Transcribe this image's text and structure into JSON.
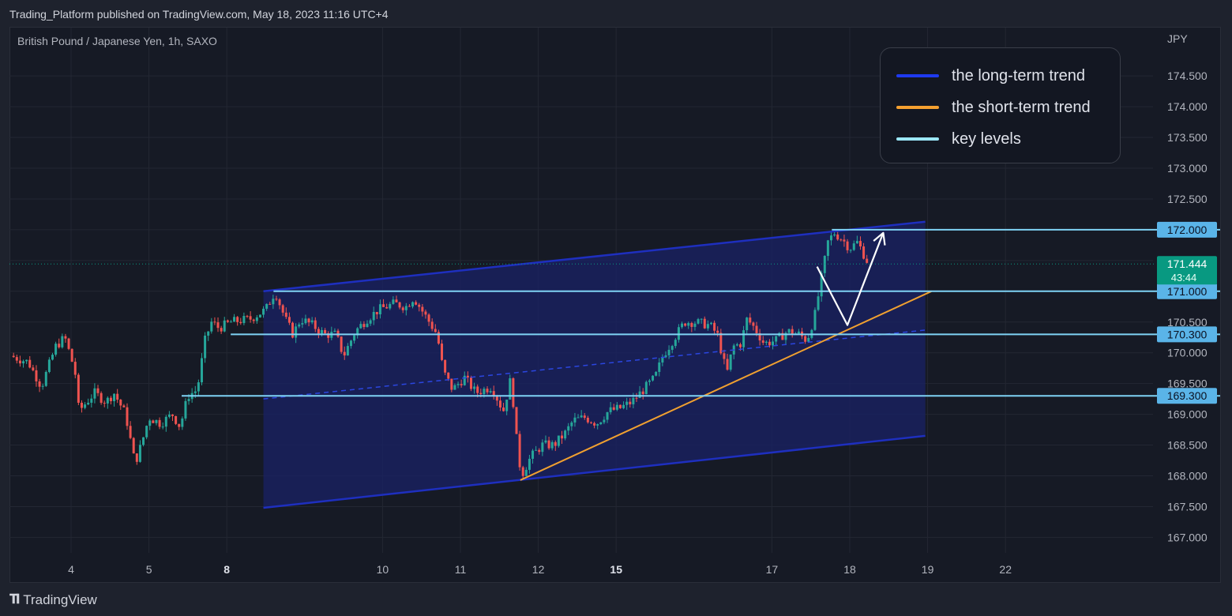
{
  "attribution": "Trading_Platform published on TradingView.com, May 18, 2023 11:16 UTC+4",
  "symbol_title": "British Pound / Japanese Yen, 1h, SAXO",
  "currency_label": "JPY",
  "footer_brand": "TradingView",
  "colors": {
    "background": "#161a25",
    "grid": "#232733",
    "up_candle": "#26a69a",
    "down_candle": "#ef5350",
    "channel_line": "#1e2fbf",
    "channel_fill": "#1a2266",
    "short_trend": "#f0a030",
    "key_level": "#7fd3f5",
    "price_tag": "#089981",
    "arrow": "#ffffff"
  },
  "legend": {
    "items": [
      {
        "label": "the long-term trend",
        "color": "#1e3af0"
      },
      {
        "label": "the short-term trend",
        "color": "#f5a030"
      },
      {
        "label": "key levels",
        "color": "#9be7fb"
      }
    ]
  },
  "chart_data": {
    "type": "candlestick",
    "title": "British Pound / Japanese Yen, 1h, SAXO",
    "y_axis_unit": "JPY",
    "ylim": [
      166.7,
      175.0
    ],
    "y_ticks": [
      "174.500",
      "174.000",
      "173.500",
      "173.000",
      "172.500",
      "172.000",
      "171.500",
      "171.000",
      "170.500",
      "170.000",
      "169.500",
      "169.000",
      "168.500",
      "168.000",
      "167.500",
      "167.000"
    ],
    "x_ticks": [
      {
        "label": "4",
        "day": 0,
        "bold": false
      },
      {
        "label": "5",
        "day": 1,
        "bold": false
      },
      {
        "label": "8",
        "day": 2,
        "bold": true
      },
      {
        "label": "10",
        "day": 4,
        "bold": false
      },
      {
        "label": "11",
        "day": 5,
        "bold": false
      },
      {
        "label": "12",
        "day": 6,
        "bold": false
      },
      {
        "label": "15",
        "day": 7,
        "bold": true
      },
      {
        "label": "17",
        "day": 9,
        "bold": false
      },
      {
        "label": "18",
        "day": 10,
        "bold": false
      },
      {
        "label": "19",
        "day": 11,
        "bold": false
      },
      {
        "label": "22",
        "day": 12,
        "bold": false
      }
    ],
    "price_anchors": [
      [
        -0.78,
        169.95
      ],
      [
        -0.55,
        169.85
      ],
      [
        -0.38,
        169.45
      ],
      [
        -0.2,
        170.1
      ],
      [
        -0.08,
        170.25
      ],
      [
        0.05,
        169.7
      ],
      [
        0.1,
        169.05
      ],
      [
        0.3,
        169.35
      ],
      [
        0.45,
        169.2
      ],
      [
        0.55,
        169.35
      ],
      [
        0.7,
        169.0
      ],
      [
        0.82,
        168.2
      ],
      [
        0.9,
        168.5
      ],
      [
        1.0,
        168.95
      ],
      [
        1.15,
        168.85
      ],
      [
        1.3,
        169.0
      ],
      [
        1.4,
        168.8
      ],
      [
        1.5,
        169.3
      ],
      [
        1.62,
        169.4
      ],
      [
        1.72,
        170.2
      ],
      [
        1.8,
        170.5
      ],
      [
        1.9,
        170.4
      ],
      [
        2.05,
        170.5
      ],
      [
        2.3,
        170.55
      ],
      [
        2.5,
        170.7
      ],
      [
        2.62,
        171.0
      ],
      [
        2.75,
        170.55
      ],
      [
        2.85,
        170.3
      ],
      [
        2.95,
        170.55
      ],
      [
        3.1,
        170.45
      ],
      [
        3.25,
        170.3
      ],
      [
        3.4,
        170.3
      ],
      [
        3.5,
        169.95
      ],
      [
        3.65,
        170.35
      ],
      [
        3.8,
        170.55
      ],
      [
        3.95,
        170.7
      ],
      [
        4.15,
        170.8
      ],
      [
        4.3,
        170.75
      ],
      [
        4.4,
        170.9
      ],
      [
        4.55,
        170.6
      ],
      [
        4.7,
        170.3
      ],
      [
        4.78,
        169.7
      ],
      [
        4.9,
        169.4
      ],
      [
        5.05,
        169.6
      ],
      [
        5.2,
        169.35
      ],
      [
        5.4,
        169.45
      ],
      [
        5.55,
        169.05
      ],
      [
        5.65,
        169.6
      ],
      [
        5.72,
        168.6
      ],
      [
        5.78,
        168.0
      ],
      [
        5.9,
        168.3
      ],
      [
        6.05,
        168.5
      ],
      [
        6.2,
        168.5
      ],
      [
        6.35,
        168.7
      ],
      [
        6.45,
        168.9
      ],
      [
        6.6,
        168.95
      ],
      [
        6.75,
        168.85
      ],
      [
        6.9,
        169.05
      ],
      [
        7.05,
        169.1
      ],
      [
        7.2,
        169.2
      ],
      [
        7.35,
        169.4
      ],
      [
        7.5,
        169.6
      ],
      [
        7.6,
        169.95
      ],
      [
        7.75,
        170.25
      ],
      [
        7.88,
        170.5
      ],
      [
        8.0,
        170.5
      ],
      [
        8.2,
        170.45
      ],
      [
        8.3,
        170.3
      ],
      [
        8.42,
        169.65
      ],
      [
        8.5,
        170.1
      ],
      [
        8.6,
        170.15
      ],
      [
        8.68,
        170.55
      ],
      [
        8.78,
        170.4
      ],
      [
        8.9,
        170.15
      ],
      [
        9.05,
        170.2
      ],
      [
        9.2,
        170.35
      ],
      [
        9.35,
        170.3
      ],
      [
        9.45,
        170.2
      ],
      [
        9.55,
        170.6
      ],
      [
        9.62,
        171.1
      ],
      [
        9.72,
        171.8
      ],
      [
        9.8,
        171.95
      ],
      [
        9.9,
        171.85
      ],
      [
        10.0,
        171.7
      ],
      [
        10.1,
        171.8
      ],
      [
        10.2,
        171.55
      ],
      [
        10.26,
        171.4
      ]
    ],
    "key_levels": [
      {
        "price": 172.0,
        "label": "172.000",
        "x_start_day": 9.77
      },
      {
        "price": 171.0,
        "label": "171.000",
        "x_start_day": 2.6
      },
      {
        "price": 170.3,
        "label": "170.300",
        "x_start_day": 2.05
      },
      {
        "price": 169.3,
        "label": "169.300",
        "x_start_day": 1.42
      }
    ],
    "last_price": {
      "value": "171.444",
      "countdown": "43:44",
      "price": 171.444
    },
    "channel": {
      "upper": [
        [
          2.47,
          171.0
        ],
        [
          10.97,
          172.13
        ]
      ],
      "lower": [
        [
          2.47,
          167.48
        ],
        [
          10.97,
          168.65
        ]
      ],
      "mid": [
        [
          2.47,
          169.25
        ],
        [
          10.97,
          170.37
        ]
      ],
      "shade_start_day": 2.47,
      "shade_end_day": 10.97
    },
    "short_term_trend": [
      [
        5.77,
        167.93
      ],
      [
        11.05,
        171.0
      ]
    ],
    "projection_arrow": [
      [
        9.58,
        171.4
      ],
      [
        9.97,
        170.45
      ],
      [
        10.43,
        171.95
      ]
    ]
  }
}
